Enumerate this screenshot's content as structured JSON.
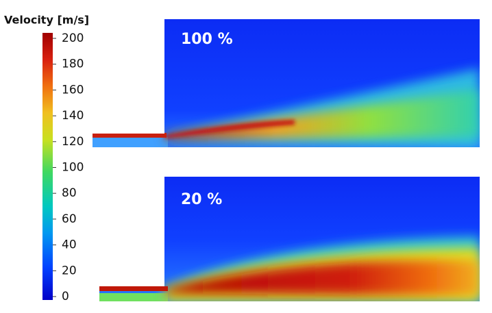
{
  "colorbar": {
    "title": "Velocity [m/s]",
    "lim": [
      0,
      200
    ],
    "ticks": [
      0,
      20,
      40,
      60,
      80,
      100,
      120,
      140,
      160,
      180,
      200
    ]
  },
  "panels": [
    {
      "label": "100 %"
    },
    {
      "label": "20 %"
    }
  ]
}
